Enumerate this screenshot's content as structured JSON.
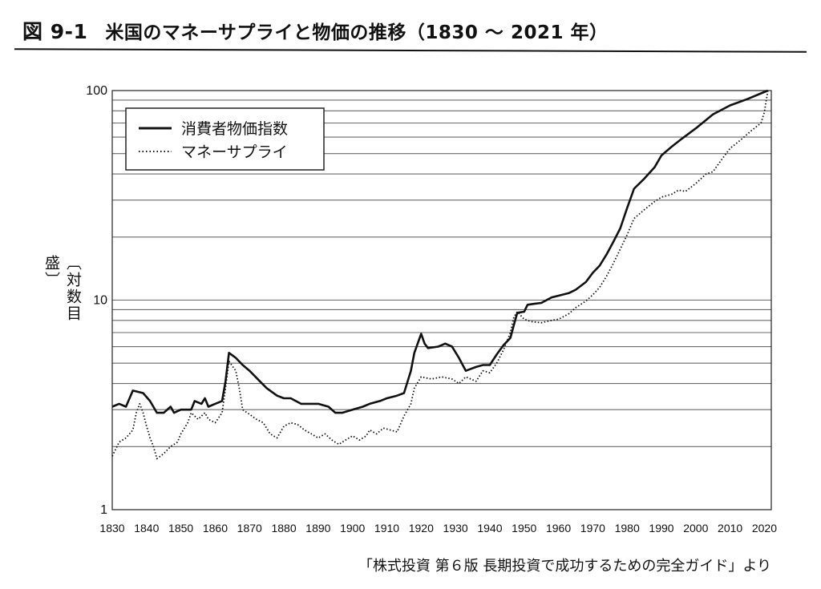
{
  "figure": {
    "number": "図 9-1",
    "title": "米国のマネーサプライと物価の推移（1830 ～ 2021 年）",
    "source": "「株式投資 第６版 長期投資で成功するための完全ガイド」より"
  },
  "chart_data": {
    "type": "line",
    "ylabel": "〔対数目盛〕",
    "yscale": "log",
    "ylim": [
      1,
      100
    ],
    "xlim": [
      1830,
      2022
    ],
    "y_ticks": [
      "1",
      "10",
      "100"
    ],
    "x_ticks": [
      "1830",
      "1840",
      "1850",
      "1860",
      "1870",
      "1880",
      "1890",
      "1900",
      "1910",
      "1920",
      "1930",
      "1940",
      "1950",
      "1960",
      "1970",
      "1980",
      "1990",
      "2000",
      "2010",
      "2020"
    ],
    "grid": "horizontal",
    "legend_position": "top-left",
    "series": [
      {
        "name": "消費者物価指数",
        "style": "solid",
        "points": [
          [
            1830,
            3.1
          ],
          [
            1832,
            3.2
          ],
          [
            1834,
            3.1
          ],
          [
            1836,
            3.7
          ],
          [
            1839,
            3.6
          ],
          [
            1841,
            3.3
          ],
          [
            1843,
            2.9
          ],
          [
            1845,
            2.9
          ],
          [
            1847,
            3.1
          ],
          [
            1848,
            2.9
          ],
          [
            1850,
            3.0
          ],
          [
            1853,
            3.0
          ],
          [
            1854,
            3.3
          ],
          [
            1856,
            3.2
          ],
          [
            1857,
            3.4
          ],
          [
            1858,
            3.1
          ],
          [
            1860,
            3.2
          ],
          [
            1862,
            3.3
          ],
          [
            1863,
            4.1
          ],
          [
            1864,
            5.6
          ],
          [
            1866,
            5.3
          ],
          [
            1868,
            4.9
          ],
          [
            1870,
            4.6
          ],
          [
            1873,
            4.1
          ],
          [
            1875,
            3.8
          ],
          [
            1878,
            3.5
          ],
          [
            1880,
            3.4
          ],
          [
            1882,
            3.4
          ],
          [
            1885,
            3.2
          ],
          [
            1888,
            3.2
          ],
          [
            1890,
            3.2
          ],
          [
            1893,
            3.1
          ],
          [
            1895,
            2.9
          ],
          [
            1897,
            2.9
          ],
          [
            1900,
            3.0
          ],
          [
            1903,
            3.1
          ],
          [
            1905,
            3.2
          ],
          [
            1908,
            3.3
          ],
          [
            1910,
            3.4
          ],
          [
            1913,
            3.5
          ],
          [
            1915,
            3.6
          ],
          [
            1917,
            4.6
          ],
          [
            1918,
            5.6
          ],
          [
            1920,
            6.9
          ],
          [
            1921,
            6.2
          ],
          [
            1922,
            5.9
          ],
          [
            1925,
            6.0
          ],
          [
            1927,
            6.2
          ],
          [
            1929,
            6.0
          ],
          [
            1931,
            5.3
          ],
          [
            1933,
            4.6
          ],
          [
            1936,
            4.8
          ],
          [
            1938,
            4.9
          ],
          [
            1940,
            4.9
          ],
          [
            1942,
            5.5
          ],
          [
            1944,
            6.1
          ],
          [
            1946,
            6.6
          ],
          [
            1947,
            7.6
          ],
          [
            1948,
            8.7
          ],
          [
            1950,
            8.8
          ],
          [
            1951,
            9.5
          ],
          [
            1953,
            9.6
          ],
          [
            1955,
            9.7
          ],
          [
            1958,
            10.3
          ],
          [
            1960,
            10.5
          ],
          [
            1963,
            10.8
          ],
          [
            1965,
            11.2
          ],
          [
            1968,
            12.2
          ],
          [
            1970,
            13.5
          ],
          [
            1972,
            14.6
          ],
          [
            1974,
            16.5
          ],
          [
            1976,
            19.0
          ],
          [
            1978,
            22.0
          ],
          [
            1980,
            27.5
          ],
          [
            1982,
            34.0
          ],
          [
            1985,
            38.0
          ],
          [
            1988,
            43.0
          ],
          [
            1990,
            49.0
          ],
          [
            1993,
            54.0
          ],
          [
            1996,
            59.0
          ],
          [
            2000,
            66.0
          ],
          [
            2005,
            77.0
          ],
          [
            2010,
            85.0
          ],
          [
            2015,
            91.0
          ],
          [
            2019,
            97.0
          ],
          [
            2021,
            100.0
          ]
        ]
      },
      {
        "name": "マネーサプライ",
        "style": "dotted",
        "points": [
          [
            1830,
            1.8
          ],
          [
            1832,
            2.1
          ],
          [
            1834,
            2.2
          ],
          [
            1836,
            2.4
          ],
          [
            1837,
            2.9
          ],
          [
            1838,
            3.2
          ],
          [
            1839,
            2.9
          ],
          [
            1840,
            2.5
          ],
          [
            1841,
            2.2
          ],
          [
            1842,
            2.0
          ],
          [
            1843,
            1.75
          ],
          [
            1845,
            1.85
          ],
          [
            1847,
            2.0
          ],
          [
            1849,
            2.1
          ],
          [
            1850,
            2.3
          ],
          [
            1852,
            2.6
          ],
          [
            1853,
            2.9
          ],
          [
            1855,
            2.7
          ],
          [
            1857,
            2.9
          ],
          [
            1858,
            2.7
          ],
          [
            1860,
            2.6
          ],
          [
            1862,
            2.9
          ],
          [
            1863,
            3.8
          ],
          [
            1864,
            5.1
          ],
          [
            1866,
            4.6
          ],
          [
            1867,
            3.8
          ],
          [
            1868,
            3.0
          ],
          [
            1870,
            2.85
          ],
          [
            1872,
            2.7
          ],
          [
            1874,
            2.6
          ],
          [
            1876,
            2.3
          ],
          [
            1878,
            2.2
          ],
          [
            1880,
            2.5
          ],
          [
            1882,
            2.6
          ],
          [
            1884,
            2.55
          ],
          [
            1886,
            2.4
          ],
          [
            1888,
            2.3
          ],
          [
            1890,
            2.2
          ],
          [
            1892,
            2.3
          ],
          [
            1894,
            2.15
          ],
          [
            1896,
            2.05
          ],
          [
            1898,
            2.15
          ],
          [
            1900,
            2.25
          ],
          [
            1902,
            2.15
          ],
          [
            1904,
            2.25
          ],
          [
            1905,
            2.4
          ],
          [
            1907,
            2.3
          ],
          [
            1909,
            2.45
          ],
          [
            1911,
            2.4
          ],
          [
            1913,
            2.35
          ],
          [
            1915,
            2.8
          ],
          [
            1917,
            3.2
          ],
          [
            1918,
            3.8
          ],
          [
            1920,
            4.3
          ],
          [
            1923,
            4.2
          ],
          [
            1926,
            4.3
          ],
          [
            1929,
            4.2
          ],
          [
            1931,
            4.0
          ],
          [
            1933,
            4.3
          ],
          [
            1936,
            4.1
          ],
          [
            1938,
            4.6
          ],
          [
            1940,
            4.5
          ],
          [
            1942,
            5.0
          ],
          [
            1944,
            5.8
          ],
          [
            1946,
            7.0
          ],
          [
            1947,
            8.3
          ],
          [
            1948,
            8.8
          ],
          [
            1950,
            8.1
          ],
          [
            1952,
            7.9
          ],
          [
            1955,
            7.8
          ],
          [
            1958,
            8.0
          ],
          [
            1960,
            8.1
          ],
          [
            1963,
            8.6
          ],
          [
            1965,
            9.2
          ],
          [
            1968,
            9.9
          ],
          [
            1970,
            10.6
          ],
          [
            1972,
            11.5
          ],
          [
            1974,
            13.0
          ],
          [
            1976,
            15.0
          ],
          [
            1978,
            17.5
          ],
          [
            1980,
            20.5
          ],
          [
            1982,
            24.5
          ],
          [
            1985,
            27.0
          ],
          [
            1988,
            29.5
          ],
          [
            1990,
            31.0
          ],
          [
            1993,
            32.0
          ],
          [
            1995,
            33.5
          ],
          [
            1997,
            33.0
          ],
          [
            2000,
            36.0
          ],
          [
            2003,
            40.0
          ],
          [
            2005,
            41.0
          ],
          [
            2008,
            48.0
          ],
          [
            2010,
            53.0
          ],
          [
            2013,
            58.0
          ],
          [
            2016,
            64.0
          ],
          [
            2019,
            70.0
          ],
          [
            2020,
            79.0
          ],
          [
            2021,
            100.0
          ]
        ]
      }
    ]
  }
}
